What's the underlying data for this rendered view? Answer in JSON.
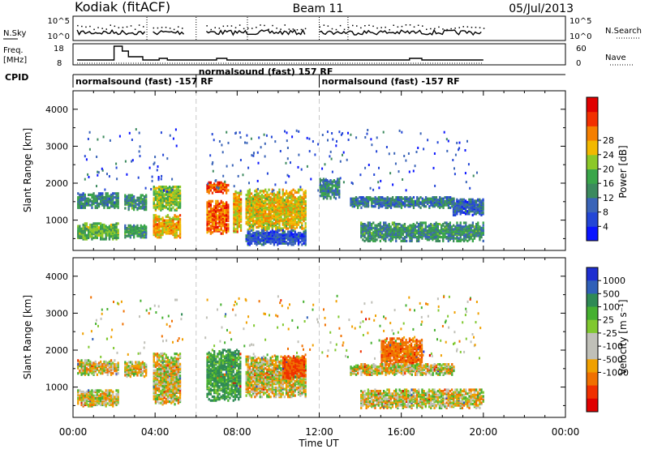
{
  "header": {
    "station": "Kodiak (fitACF)",
    "beam": "Beam 11",
    "date": "05/Jul/2013"
  },
  "summary": {
    "nsky_label": "N.Sky",
    "nsky_ticks": [
      "10^5",
      "10^0"
    ],
    "nsearch_label": "N.Search",
    "nsearch_ticks": [
      "10^5",
      "10^0"
    ],
    "freq_label": "Freq.",
    "freq_unit": "[MHz]",
    "freq_ticks": [
      "18",
      "8"
    ],
    "nave_label": "Nave",
    "nave_ticks": [
      "60",
      "0"
    ],
    "cpid_label": "CPID",
    "cpid_segments": [
      {
        "start": 0.0,
        "end": 6.0,
        "label": "normalsound (fast) -157 RF"
      },
      {
        "start": 6.0,
        "end": 12.0,
        "label": "normalsound (fast) 157 RF"
      },
      {
        "start": 12.0,
        "end": 20.0,
        "label": "normalsound (fast) -157 RF"
      }
    ]
  },
  "axes": {
    "xlabel": "Time UT",
    "ylabel": "Slant Range [km]",
    "x_ticks": [
      "00:00",
      "04:00",
      "08:00",
      "12:00",
      "16:00",
      "20:00",
      "00:00"
    ],
    "x_tick_hours": [
      0,
      4,
      8,
      12,
      16,
      20,
      24
    ],
    "y_ticks": [
      "1000",
      "2000",
      "3000",
      "4000"
    ],
    "y_tick_values": [
      1000,
      2000,
      3000,
      4000
    ],
    "xlim_hours": [
      0,
      24
    ],
    "ylim_km": [
      180,
      4500
    ],
    "cpid_change_hours": [
      6.0,
      12.0
    ]
  },
  "power_colorbar": {
    "label": "Power [dB]",
    "tick_labels": [
      "4",
      "8",
      "12",
      "16",
      "20",
      "24",
      "28"
    ],
    "colors": [
      "#0a14ff",
      "#2346d6",
      "#3a64b8",
      "#3c8a5e",
      "#3aa64a",
      "#8cc828",
      "#f2b800",
      "#f57f00",
      "#f23000",
      "#e00000"
    ]
  },
  "velocity_colorbar": {
    "label": "Velocity [m s⁻¹]",
    "tick_labels": [
      "1000",
      "500",
      "100",
      "25",
      "-25",
      "-100",
      "-500",
      "-1000"
    ],
    "colors": [
      "#1e2fd0",
      "#3060b8",
      "#2f8a55",
      "#46b030",
      "#80c830",
      "#c0c0b8",
      "#c0c0b8",
      "#f0a000",
      "#f07000",
      "#f03000",
      "#e00000"
    ]
  },
  "chart_data": {
    "type": "heatmap",
    "title": "Beam 11",
    "xlabel": "Time UT",
    "ylabel": "Slant Range [km]",
    "x_range_hours": [
      0,
      20
    ],
    "xlim": [
      "00:00",
      "00:00"
    ],
    "ylim": [
      180,
      4500
    ],
    "panels": [
      {
        "name": "Power [dB]",
        "colorbar_range": [
          0,
          30
        ],
        "regions": [
          {
            "t0": 0.2,
            "t1": 2.2,
            "r0": 1300,
            "r1": 1700,
            "level": 10
          },
          {
            "t0": 0.2,
            "t1": 2.2,
            "r0": 450,
            "r1": 900,
            "level": 14
          },
          {
            "t0": 2.5,
            "t1": 3.6,
            "r0": 1250,
            "r1": 1650,
            "level": 11
          },
          {
            "t0": 2.5,
            "t1": 3.6,
            "r0": 500,
            "r1": 850,
            "level": 11
          },
          {
            "t0": 3.9,
            "t1": 5.2,
            "r0": 1200,
            "r1": 1900,
            "level": 16
          },
          {
            "t0": 3.9,
            "t1": 5.2,
            "r0": 500,
            "r1": 1100,
            "level": 20
          },
          {
            "t0": 6.5,
            "t1": 7.6,
            "r0": 600,
            "r1": 1500,
            "level": 24
          },
          {
            "t0": 6.5,
            "t1": 7.6,
            "r0": 1700,
            "r1": 2000,
            "level": 24
          },
          {
            "t0": 7.8,
            "t1": 8.2,
            "r0": 650,
            "r1": 1750,
            "level": 20
          },
          {
            "t0": 8.4,
            "t1": 11.3,
            "r0": 700,
            "r1": 1800,
            "level": 19
          },
          {
            "t0": 8.4,
            "t1": 11.3,
            "r0": 300,
            "r1": 700,
            "level": 6
          },
          {
            "t0": 12.0,
            "t1": 13.0,
            "r0": 1550,
            "r1": 2100,
            "level": 10
          },
          {
            "t0": 13.5,
            "t1": 18.6,
            "r0": 1300,
            "r1": 1600,
            "level": 9
          },
          {
            "t0": 14.0,
            "t1": 20.0,
            "r0": 400,
            "r1": 900,
            "level": 11
          },
          {
            "t0": 18.5,
            "t1": 20.0,
            "r0": 1100,
            "r1": 1550,
            "level": 7
          }
        ]
      },
      {
        "name": "Velocity [m s-1]",
        "colorbar_range": [
          -1000,
          1000
        ],
        "regions": [
          {
            "t0": 0.2,
            "t1": 2.2,
            "r0": 1300,
            "r1": 1700,
            "velocity": 0
          },
          {
            "t0": 0.2,
            "t1": 2.2,
            "r0": 450,
            "r1": 900,
            "velocity": 0
          },
          {
            "t0": 2.5,
            "t1": 3.6,
            "r0": 1250,
            "r1": 1650,
            "velocity": 0
          },
          {
            "t0": 3.9,
            "t1": 5.2,
            "r0": 500,
            "r1": 1900,
            "velocity": 0
          },
          {
            "t0": 6.5,
            "t1": 8.2,
            "r0": 600,
            "r1": 2000,
            "velocity": 200
          },
          {
            "t0": 8.4,
            "t1": 11.3,
            "r0": 700,
            "r1": 1800,
            "velocity": 0
          },
          {
            "t0": 10.2,
            "t1": 11.3,
            "r0": 1200,
            "r1": 1800,
            "velocity": -300
          },
          {
            "t0": 15.0,
            "t1": 17.0,
            "r0": 1400,
            "r1": 2300,
            "velocity": -200
          },
          {
            "t0": 13.5,
            "t1": 18.6,
            "r0": 1300,
            "r1": 1600,
            "velocity": 0
          },
          {
            "t0": 14.0,
            "t1": 20.0,
            "r0": 400,
            "r1": 900,
            "velocity": 0
          }
        ]
      }
    ]
  }
}
